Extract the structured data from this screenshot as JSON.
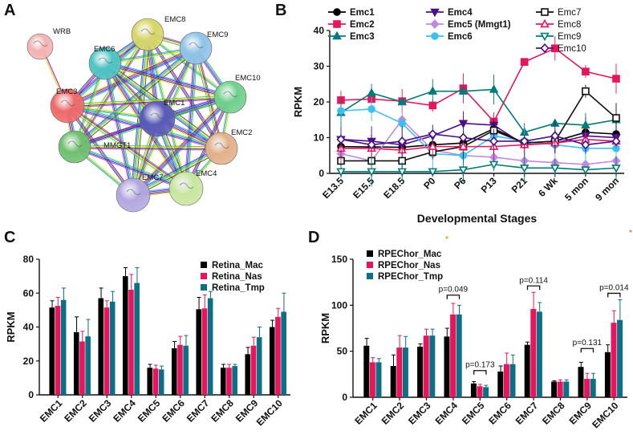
{
  "panels": {
    "a": "A",
    "b": "B",
    "c": "C",
    "d": "D"
  },
  "network": {
    "nodes": [
      {
        "id": "WRB",
        "color": "#f2b3b3"
      },
      {
        "id": "EMC8",
        "color": "#d6d66a"
      },
      {
        "id": "EMC9",
        "color": "#8fc3e8"
      },
      {
        "id": "EMC6",
        "color": "#4fc4c4"
      },
      {
        "id": "EMC10",
        "color": "#6fd08c"
      },
      {
        "id": "EMC3",
        "color": "#ee6a6a"
      },
      {
        "id": "EMC1",
        "color": "#5a5ab8"
      },
      {
        "id": "EMC2",
        "color": "#e3b08a"
      },
      {
        "id": "MMGT1",
        "color": "#6fbf6f"
      },
      {
        "id": "EMC7",
        "color": "#b3a6e0"
      },
      {
        "id": "EMC4",
        "color": "#c8e6a0"
      }
    ]
  },
  "chart_data": [
    {
      "type": "line",
      "panel": "B",
      "ylabel": "RPKM",
      "xlabel": "Developmental Stages",
      "ylim": [
        0,
        40
      ],
      "yticks": [
        "0",
        "10",
        "20",
        "30",
        "40"
      ],
      "categories": [
        "E13.5",
        "E15.5",
        "E18.5",
        "P0",
        "P6",
        "P13",
        "P21",
        "6 Wk",
        "5 mon",
        "9 mon"
      ],
      "series": [
        {
          "name": "Emc1",
          "color": "#000000",
          "marker": "circle",
          "filled": true,
          "values": [
            7.5,
            7.4,
            7.3,
            8.0,
            8.5,
            12.5,
            8.5,
            9.0,
            11.5,
            11.0
          ]
        },
        {
          "name": "Emc2",
          "color": "#e8155d",
          "marker": "square",
          "filled": true,
          "values": [
            20.5,
            20.8,
            20.2,
            19.0,
            23.8,
            14.5,
            31.2,
            35.0,
            28.5,
            26.5
          ]
        },
        {
          "name": "Emc3",
          "color": "#007a7a",
          "marker": "triangle",
          "filled": true,
          "values": [
            17.0,
            22.5,
            20.0,
            23.0,
            23.0,
            23.5,
            11.5,
            14.0,
            13.5,
            15.0
          ]
        },
        {
          "name": "Emc4",
          "color": "#4b0f8c",
          "marker": "triangle-down",
          "filled": true,
          "values": [
            9.5,
            9.0,
            8.0,
            10.5,
            14.0,
            13.5,
            8.0,
            8.5,
            10.5,
            10.0
          ]
        },
        {
          "name": "Emc5 (Mmgt1)",
          "color": "#c08ae0",
          "marker": "diamond",
          "filled": true,
          "values": [
            5.5,
            3.5,
            15.0,
            6.5,
            5.0,
            4.5,
            3.5,
            3.0,
            2.5,
            3.5
          ]
        },
        {
          "name": "Emc6",
          "color": "#3cc0f0",
          "marker": "circle",
          "filled": true,
          "values": [
            17.5,
            18.0,
            14.0,
            5.5,
            5.0,
            10.5,
            9.0,
            8.0,
            7.0,
            7.0
          ]
        },
        {
          "name": "Emc7",
          "color": "#111111",
          "marker": "square",
          "filled": false,
          "values": [
            3.5,
            3.5,
            3.5,
            6.0,
            7.5,
            12.0,
            8.5,
            9.0,
            23.0,
            15.5
          ]
        },
        {
          "name": "Emc8",
          "color": "#e8155d",
          "marker": "triangle",
          "filled": false,
          "values": [
            7.0,
            7.0,
            6.5,
            7.5,
            7.5,
            7.5,
            8.0,
            8.5,
            9.5,
            9.0
          ]
        },
        {
          "name": "Emc9",
          "color": "#007a7a",
          "marker": "triangle-down",
          "filled": false,
          "values": [
            0.5,
            0.5,
            0.5,
            0.5,
            1.0,
            2.5,
            1.5,
            1.5,
            1.0,
            1.5
          ]
        },
        {
          "name": "Emc10",
          "color": "#4b0f8c",
          "marker": "diamond",
          "filled": false,
          "values": [
            9.5,
            8.0,
            9.0,
            11.0,
            10.0,
            9.0,
            9.0,
            10.5,
            8.0,
            9.0
          ]
        }
      ]
    },
    {
      "type": "bar",
      "panel": "C",
      "ylabel": "RPKM",
      "ylim": [
        0,
        80
      ],
      "yticks": [
        "0",
        "20",
        "40",
        "60",
        "80"
      ],
      "categories": [
        "EMC1",
        "EMC2",
        "EMC3",
        "EMC4",
        "EMC5",
        "EMC6",
        "EMC7",
        "EMC8",
        "EMC9",
        "EMC10"
      ],
      "series": [
        {
          "name": "Retina_Mac",
          "color": "#000000",
          "values": [
            51.5,
            37.0,
            57.0,
            70.0,
            16.0,
            27.5,
            50.5,
            16.0,
            24.0,
            40.0
          ],
          "errors": [
            4,
            9,
            6,
            5,
            2,
            4,
            7,
            2,
            4,
            4
          ]
        },
        {
          "name": "Retina_Nas",
          "color": "#e8155d",
          "values": [
            52.5,
            31.5,
            51.5,
            62.0,
            15.5,
            29.5,
            51.0,
            16.0,
            29.0,
            46.0
          ],
          "errors": [
            5,
            6,
            4,
            9,
            2,
            5,
            8,
            2,
            5,
            5
          ]
        },
        {
          "name": "Retina_Tmp",
          "color": "#0c6f86",
          "values": [
            56.0,
            34.5,
            55.0,
            66.0,
            15.0,
            29.0,
            57.0,
            17.0,
            34.0,
            49.0
          ],
          "errors": [
            7,
            10,
            6,
            9,
            2,
            6,
            4,
            1,
            6,
            11
          ]
        }
      ]
    },
    {
      "type": "bar",
      "panel": "D",
      "ylabel": "RPKM",
      "ylim": [
        0,
        150
      ],
      "yticks": [
        "0",
        "50",
        "100",
        "150"
      ],
      "categories": [
        "EMC1",
        "EMC2",
        "EMC3",
        "EMC4",
        "EMC5",
        "EMC6",
        "EMC7",
        "EMC8",
        "EMC9",
        "EMC10"
      ],
      "series": [
        {
          "name": "RPEChor_Mac",
          "color": "#000000",
          "values": [
            56.0,
            34.0,
            55.0,
            66.0,
            15.0,
            28.0,
            57.0,
            17.0,
            33.0,
            49.0
          ],
          "errors": [
            8,
            12,
            3,
            9,
            2,
            6,
            3,
            1,
            5,
            8
          ]
        },
        {
          "name": "RPEChor_Nas",
          "color": "#e8155d",
          "values": [
            38.0,
            54.0,
            67.0,
            90.0,
            12.0,
            36.0,
            96.0,
            17.0,
            20.0,
            81.0
          ],
          "errors": [
            5,
            13,
            7,
            12,
            2,
            12,
            18,
            2,
            6,
            13
          ]
        },
        {
          "name": "RPEChor_Tmp",
          "color": "#0c6f86",
          "values": [
            38.0,
            54.0,
            67.0,
            90.0,
            11.0,
            36.0,
            93.0,
            17.0,
            20.0,
            84.0
          ],
          "errors": [
            4,
            12,
            7,
            10,
            2,
            10,
            10,
            2,
            6,
            22
          ]
        }
      ],
      "annotations": [
        {
          "text": "p=0.049",
          "index": 3,
          "value": 111
        },
        {
          "text": "p=0.173",
          "index": 4,
          "value": 29
        },
        {
          "text": "p=0.114",
          "index": 6,
          "value": 121
        },
        {
          "text": "p=0.131",
          "index": 8,
          "value": 53
        },
        {
          "text": "p=0.014",
          "index": 9,
          "value": 113
        }
      ]
    }
  ]
}
